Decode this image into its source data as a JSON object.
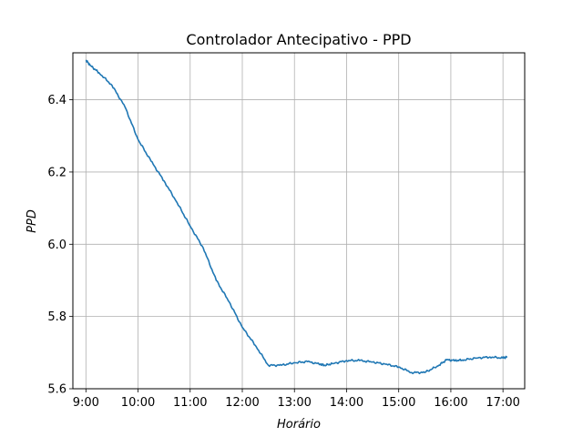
{
  "chart_data": {
    "type": "line",
    "title": "Controlador Antecipativo - PPD",
    "xlabel": "Horário",
    "ylabel": "PPD",
    "x_ticks": [
      "9:00",
      "10:00",
      "11:00",
      "12:00",
      "13:00",
      "14:00",
      "15:00",
      "16:00",
      "17:00"
    ],
    "y_ticks": [
      "5.6",
      "5.8",
      "6.0",
      "6.2",
      "6.4"
    ],
    "xlim": [
      "8:45",
      "17:25"
    ],
    "ylim": [
      5.6,
      6.53
    ],
    "grid": true,
    "series": [
      {
        "name": "",
        "color": "#1f77b4",
        "x": [
          "9:00",
          "9:05",
          "9:15",
          "9:30",
          "9:45",
          "10:00",
          "10:15",
          "10:30",
          "10:45",
          "11:00",
          "11:15",
          "11:30",
          "11:45",
          "12:00",
          "12:15",
          "12:30",
          "12:45",
          "13:00",
          "13:15",
          "13:30",
          "13:35",
          "13:45",
          "14:00",
          "14:15",
          "14:30",
          "14:45",
          "15:00",
          "15:15",
          "15:30",
          "15:45",
          "15:55",
          "16:05",
          "16:15",
          "16:30",
          "16:45",
          "17:00",
          "17:05"
        ],
        "values": [
          6.51,
          6.495,
          6.475,
          6.44,
          6.38,
          6.29,
          6.23,
          6.175,
          6.115,
          6.05,
          5.99,
          5.9,
          5.84,
          5.77,
          5.72,
          5.665,
          5.665,
          5.672,
          5.675,
          5.668,
          5.665,
          5.67,
          5.678,
          5.678,
          5.674,
          5.668,
          5.66,
          5.645,
          5.645,
          5.663,
          5.68,
          5.678,
          5.68,
          5.685,
          5.688,
          5.685,
          5.688
        ]
      }
    ]
  }
}
